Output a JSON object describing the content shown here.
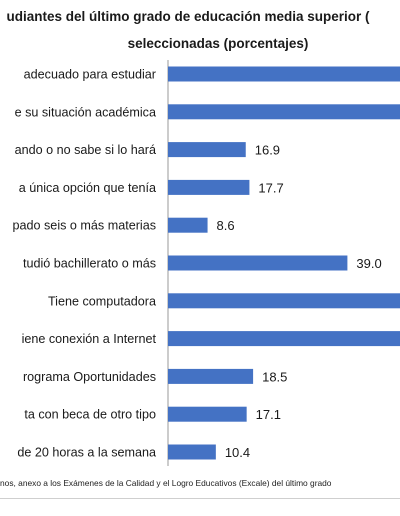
{
  "title_line1": "udiantes del último grado de educación media superior (",
  "title_line2": "seleccionadas (porcentajes)",
  "source_note": "nos, anexo a los Exámenes de la Calidad y el Logro Educativos (Excale) del último grado",
  "chart_data": {
    "type": "bar",
    "orientation": "horizontal",
    "categories": [
      "adecuado para estudiar",
      "e su situación académica",
      "ando o no sabe si lo hará",
      "a única opción que tenía",
      "pado seis o más materias",
      "tudió bachillerato o más",
      "Tiene computadora",
      "iene conexión a Internet",
      "rograma Oportunidades",
      "ta con beca de otro tipo",
      "de 20 horas a la semana"
    ],
    "values": [
      null,
      null,
      16.9,
      17.7,
      8.6,
      39.0,
      null,
      null,
      18.5,
      17.1,
      10.4
    ],
    "labels": [
      "",
      "",
      "16.9",
      "17.7",
      "8.6",
      "39.0",
      "",
      "",
      "18.5",
      "17.1",
      "10.4"
    ],
    "bar_color": "#4472c4",
    "grid": false
  }
}
